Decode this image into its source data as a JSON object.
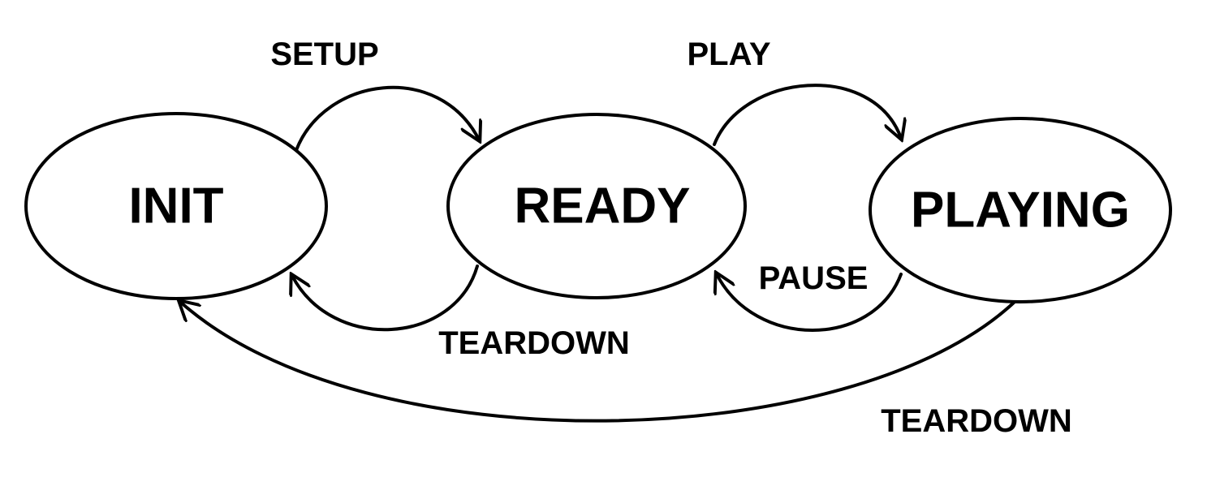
{
  "diagram": {
    "states": {
      "init": "INIT",
      "ready": "READY",
      "playing": "PLAYING"
    },
    "transitions": {
      "setup": {
        "label": "SETUP",
        "from": "INIT",
        "to": "READY"
      },
      "play": {
        "label": "PLAY",
        "from": "READY",
        "to": "PLAYING"
      },
      "pause": {
        "label": "PAUSE",
        "from": "PLAYING",
        "to": "READY"
      },
      "teardown_ready": {
        "label": "TEARDOWN",
        "from": "READY",
        "to": "INIT"
      },
      "teardown_playing": {
        "label": "TEARDOWN",
        "from": "PLAYING",
        "to": "INIT"
      }
    },
    "colors": {
      "stroke": "#000000",
      "background": "#ffffff"
    }
  }
}
